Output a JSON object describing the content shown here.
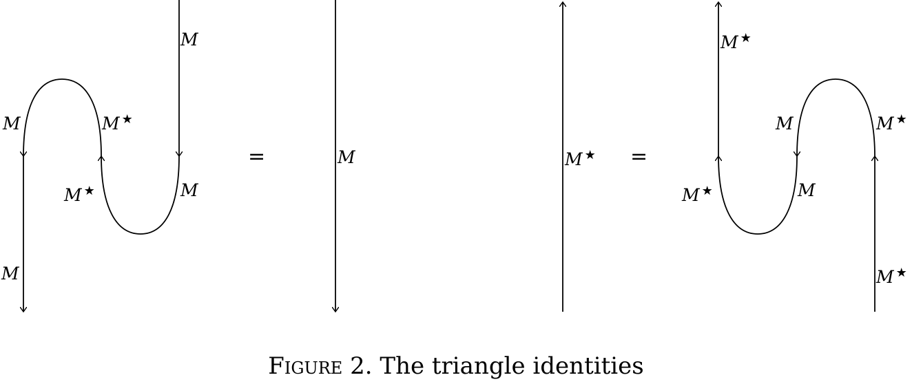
{
  "labels": {
    "M": "M",
    "star": "★"
  },
  "equals": "=",
  "caption": {
    "figure": "Figure 2.",
    "text": "The triangle identities"
  }
}
